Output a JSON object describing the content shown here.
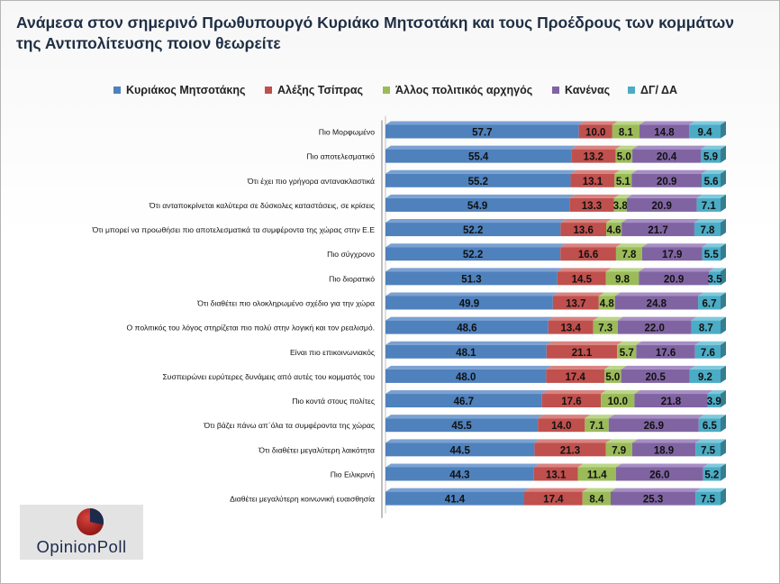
{
  "title": "Ανάμεσα στον σημερινό Πρωθυπουργό Κυριάκο Μητσοτάκη και τους Προέδρους των κομμάτων της Αντιπολίτευσης ποιον θεωρείτε",
  "logo": {
    "text": "OpinionPoll"
  },
  "colors": {
    "series": [
      "#4f81bd",
      "#c0504d",
      "#9bbb59",
      "#8064a2",
      "#4bacc6"
    ],
    "series_dark": [
      "#385d8a",
      "#8c3836",
      "#71893f",
      "#5c4776",
      "#357d91"
    ],
    "series_top": [
      "#7aa1d2",
      "#d98380",
      "#bbd58a",
      "#a68ec4",
      "#7fc9dc"
    ],
    "title": "#1f2f44"
  },
  "chart_data": {
    "type": "bar",
    "orientation": "horizontal",
    "stacked": true,
    "xlim": [
      0,
      100
    ],
    "legend_position": "top",
    "categories": [
      "Πιο Μορφωμένο",
      "Πιο  αποτελεσματικό",
      "Ότι έχει πιο γρήγορα αντανακλαστικά",
      "Ότι ανταποκρίνεται καλύτερα σε δύσκολες καταστάσεις, σε κρίσεις",
      "Ότι μπορεί να προωθήσει πιο αποτελεσματικά τα συμφέροντα της χώρας στην Ε.Ε",
      "Πιο σύγχρονο",
      "Πιο διορατικό",
      "Ότι διαθέτει πιο ολοκληρωμένο σχέδιο για την χώρα",
      "Ο πολιτικός του λόγος στηρίζεται πιο πολύ στην λογική και τον ρεαλισμό.",
      "Είναι πιο επικοινωνιακός",
      "Συσπειρώνει ευρύτερες δυνάμεις από αυτές του κομματός του",
      "Πιο κοντά στους πολίτες",
      "Ότι βάζει πάνω απ΄όλα τα συμφέροντα της χώρας",
      "Ότι διαθέτει μεγαλύτερη λαικότητα",
      "Πιο Ειλικρινή",
      "Διαθέτει μεγαλύτερη κοινωνική ευαισθησία"
    ],
    "series": [
      {
        "name": "Κυριάκος Μητσοτάκης",
        "values": [
          57.7,
          55.4,
          55.2,
          54.9,
          52.2,
          52.2,
          51.3,
          49.9,
          48.6,
          48.1,
          48.0,
          46.7,
          45.5,
          44.5,
          44.3,
          41.4
        ]
      },
      {
        "name": "Αλέξης Τσίπρας",
        "values": [
          10.0,
          13.2,
          13.1,
          13.3,
          13.6,
          16.6,
          14.5,
          13.7,
          13.4,
          21.1,
          17.4,
          17.6,
          14.0,
          21.3,
          13.1,
          17.4
        ]
      },
      {
        "name": "Άλλος πολιτικός αρχηγός",
        "values": [
          8.1,
          5.0,
          5.1,
          3.8,
          4.6,
          7.8,
          9.8,
          4.8,
          7.3,
          5.7,
          5.0,
          10.0,
          7.1,
          7.9,
          11.4,
          8.4
        ]
      },
      {
        "name": "Κανένας",
        "values": [
          14.8,
          20.4,
          20.9,
          20.9,
          21.7,
          17.9,
          20.9,
          24.8,
          22.0,
          17.6,
          20.5,
          21.8,
          26.9,
          18.9,
          26.0,
          25.3
        ]
      },
      {
        "name": "ΔΓ/ ΔΑ",
        "values": [
          9.4,
          5.9,
          5.6,
          7.1,
          7.8,
          5.5,
          3.5,
          6.7,
          8.7,
          7.6,
          9.2,
          3.9,
          6.5,
          7.5,
          5.2,
          7.5
        ]
      }
    ]
  }
}
